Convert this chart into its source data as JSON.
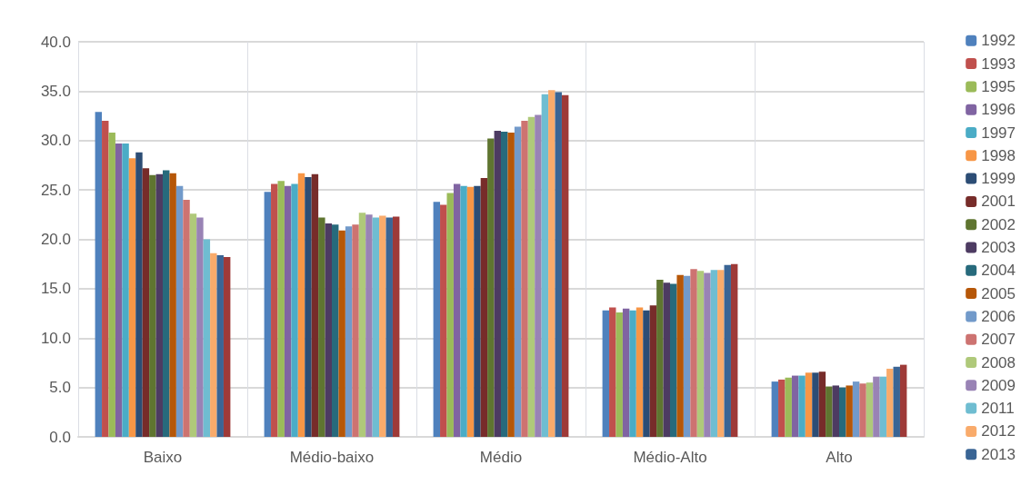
{
  "chart_data": {
    "type": "bar",
    "categories": [
      "Baixo",
      "Médio-baixo",
      "Médio",
      "Médio-Alto",
      "Alto"
    ],
    "series": [
      {
        "name": "1992",
        "color": "#4f81bd",
        "values": [
          32.9,
          24.8,
          23.8,
          12.8,
          5.6
        ]
      },
      {
        "name": "1993",
        "color": "#c0504d",
        "values": [
          32.0,
          25.6,
          23.5,
          13.1,
          5.8
        ]
      },
      {
        "name": "1995",
        "color": "#9bbb59",
        "values": [
          30.8,
          25.9,
          24.7,
          12.6,
          6.0
        ]
      },
      {
        "name": "1996",
        "color": "#8064a2",
        "values": [
          29.7,
          25.4,
          25.6,
          13.0,
          6.2
        ]
      },
      {
        "name": "1997",
        "color": "#4bacc6",
        "values": [
          29.7,
          25.6,
          25.4,
          12.8,
          6.2
        ]
      },
      {
        "name": "1998",
        "color": "#f79646",
        "values": [
          28.2,
          26.7,
          25.3,
          13.1,
          6.5
        ]
      },
      {
        "name": "1999",
        "color": "#2c4d75",
        "values": [
          28.8,
          26.3,
          25.4,
          12.8,
          6.5
        ]
      },
      {
        "name": "2001",
        "color": "#772c2a",
        "values": [
          27.2,
          26.6,
          26.2,
          13.3,
          6.6
        ]
      },
      {
        "name": "2002",
        "color": "#5f7530",
        "values": [
          26.5,
          22.2,
          30.2,
          15.9,
          5.1
        ]
      },
      {
        "name": "2003",
        "color": "#4d3b62",
        "values": [
          26.6,
          21.6,
          31.0,
          15.6,
          5.2
        ]
      },
      {
        "name": "2004",
        "color": "#276a7c",
        "values": [
          27.0,
          21.5,
          30.9,
          15.5,
          5.0
        ]
      },
      {
        "name": "2005",
        "color": "#b65708",
        "values": [
          26.7,
          20.9,
          30.8,
          16.4,
          5.2
        ]
      },
      {
        "name": "2006",
        "color": "#729aca",
        "values": [
          25.4,
          21.3,
          31.4,
          16.3,
          5.6
        ]
      },
      {
        "name": "2007",
        "color": "#cd7371",
        "values": [
          24.0,
          21.5,
          32.0,
          17.0,
          5.4
        ]
      },
      {
        "name": "2008",
        "color": "#afc97a",
        "values": [
          22.6,
          22.7,
          32.4,
          16.8,
          5.5
        ]
      },
      {
        "name": "2009",
        "color": "#9983b5",
        "values": [
          22.2,
          22.5,
          32.6,
          16.6,
          6.1
        ]
      },
      {
        "name": "2011",
        "color": "#6fbdd1",
        "values": [
          20.0,
          22.2,
          34.7,
          16.9,
          6.1
        ]
      },
      {
        "name": "2012",
        "color": "#f9ab6b",
        "values": [
          18.6,
          22.4,
          35.1,
          16.9,
          6.9
        ]
      },
      {
        "name": "2013",
        "color": "#3a6595",
        "values": [
          18.4,
          22.2,
          34.9,
          17.4,
          7.1
        ]
      },
      {
        "color": "#9e3a38",
        "values": [
          18.2,
          22.3,
          34.6,
          17.5,
          7.3
        ]
      }
    ],
    "ylim": [
      0,
      40
    ],
    "yticks": [
      {
        "value": 0,
        "label": "0.0"
      },
      {
        "value": 5,
        "label": "5.0"
      },
      {
        "value": 10,
        "label": "10.0"
      },
      {
        "value": 15,
        "label": "15.0"
      },
      {
        "value": 20,
        "label": "20.0"
      },
      {
        "value": 25,
        "label": "25.0"
      },
      {
        "value": 30,
        "label": "30.0"
      },
      {
        "value": 35,
        "label": "35.0"
      },
      {
        "value": 40,
        "label": "40.0"
      }
    ],
    "grid": true,
    "legend": "right"
  }
}
